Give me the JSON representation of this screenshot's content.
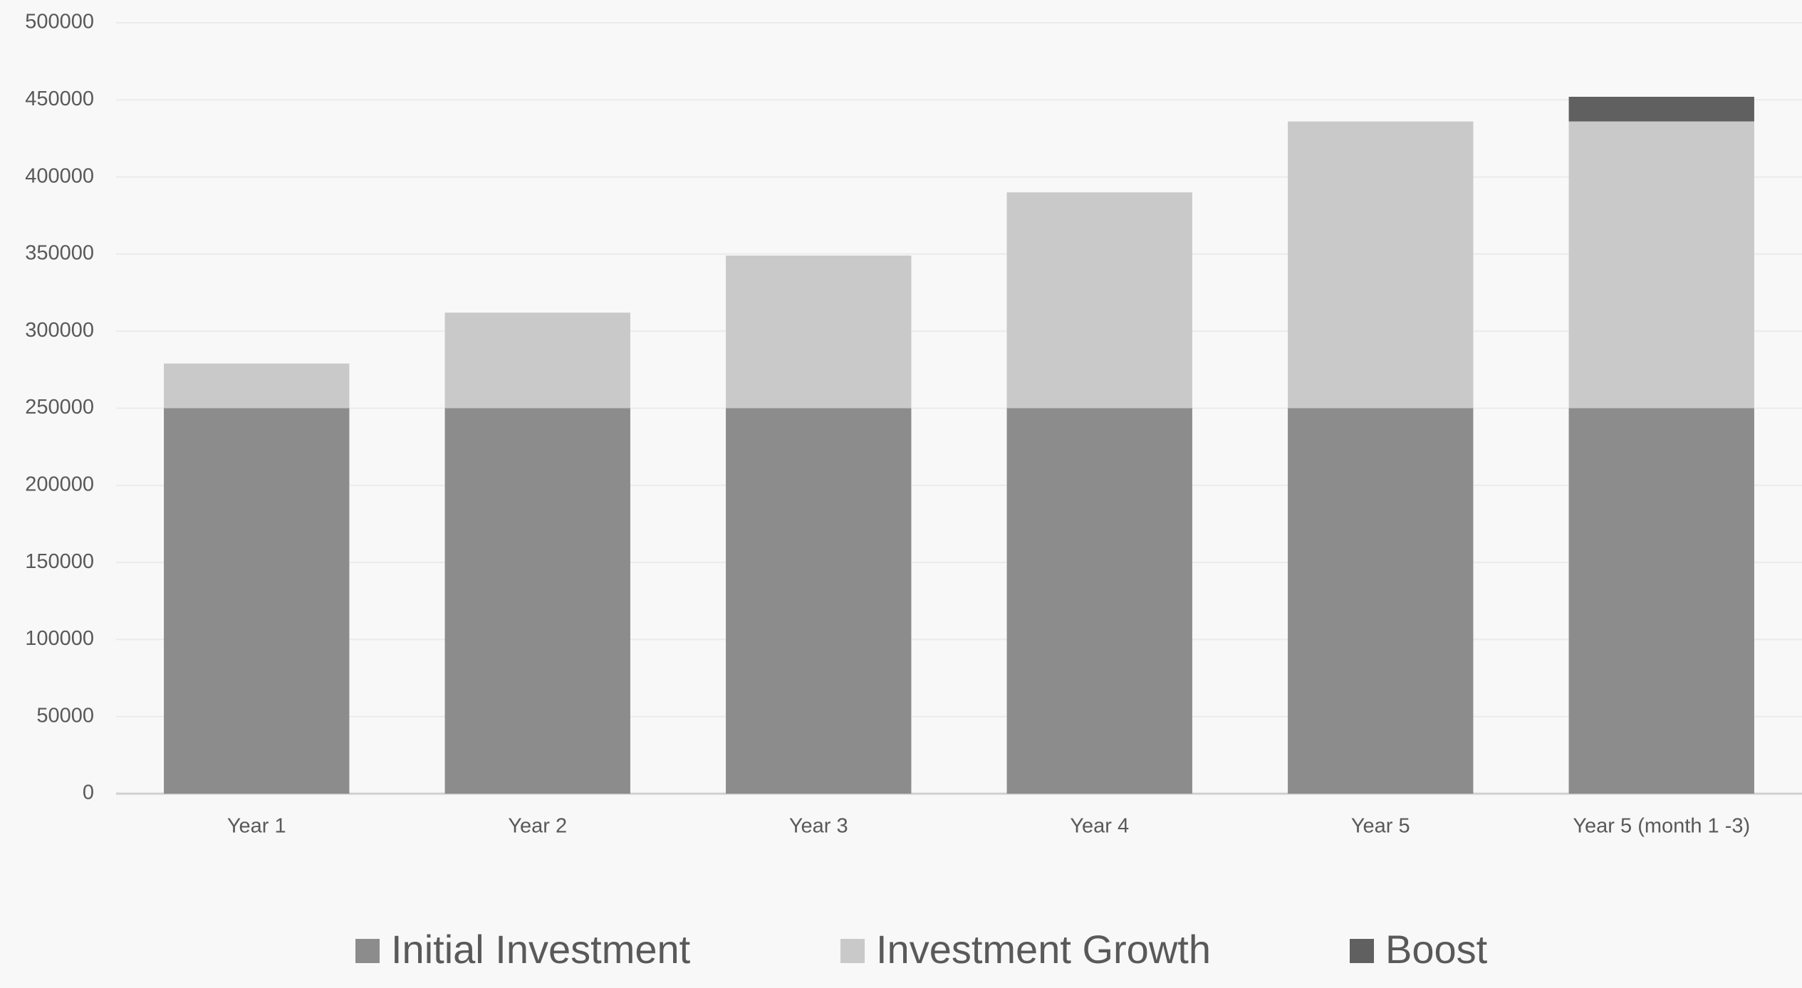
{
  "chart_data": {
    "type": "stacked-bar",
    "categories": [
      "Year 1",
      "Year 2",
      "Year 3",
      "Year 4",
      "Year 5",
      "Year 5 (month 1 -3)"
    ],
    "series": [
      {
        "name": "Initial Investment",
        "color": "#8c8c8c",
        "values": [
          250000,
          250000,
          250000,
          250000,
          250000,
          250000
        ]
      },
      {
        "name": "Investment Growth",
        "color": "#c9c9c9",
        "values": [
          29000,
          62000,
          99000,
          140000,
          186000,
          186000
        ]
      },
      {
        "name": "Boost",
        "color": "#606060",
        "values": [
          0,
          0,
          0,
          0,
          0,
          16000
        ]
      }
    ],
    "ylim": [
      0,
      500000
    ],
    "yticks": [
      0,
      50000,
      100000,
      150000,
      200000,
      250000,
      300000,
      350000,
      400000,
      450000,
      500000
    ],
    "grid": true,
    "legend": "bottom"
  }
}
